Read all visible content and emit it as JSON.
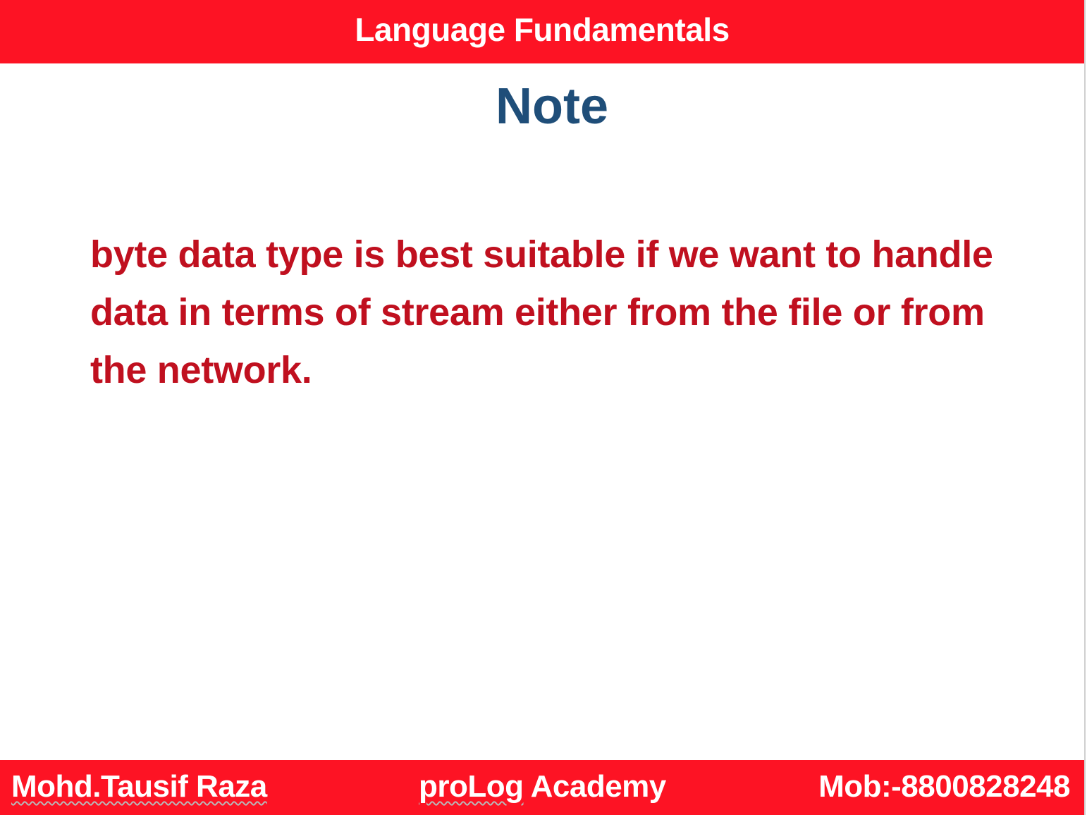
{
  "header": {
    "title": "Language Fundamentals"
  },
  "note": {
    "title": "Note",
    "body": "byte data type is best suitable if we want to handle data in terms of stream either from the file or from the network."
  },
  "footer": {
    "author": "Mohd.Tausif Raza",
    "academy_brand": "proLog",
    "academy_suffix": " Academy",
    "mobile": "Mob:-8800828248"
  },
  "colors": {
    "bar": "#fd1324",
    "title": "#1f4e79",
    "body_text": "#c0101f"
  }
}
